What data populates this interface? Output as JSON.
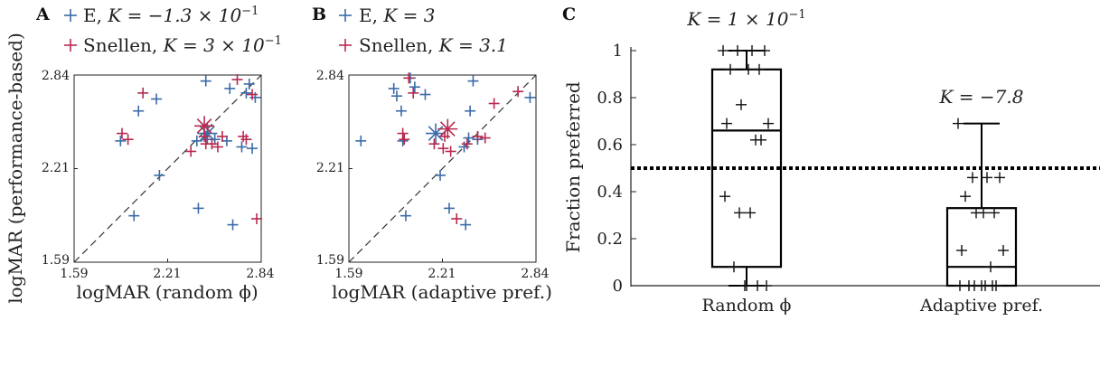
{
  "chart_data": [
    {
      "panel": "A",
      "type": "scatter",
      "xlabel": "logMAR (random ϕ)",
      "ylabel": "logMAR (performance-based)",
      "xlim": [
        1.59,
        2.84
      ],
      "ylim": [
        1.59,
        2.84
      ],
      "xticks": [
        "1.59",
        "2.21",
        "2.84"
      ],
      "yticks": [
        "1.59",
        "2.21",
        "2.84"
      ],
      "diagonal": true,
      "legend_position": "top-left",
      "series": [
        {
          "name_prefix": "E, ",
          "name_math": "K = −1.3 × 10",
          "name_sup": "−1",
          "color": "#3a6aa8",
          "points": [
            [
              1.9,
              2.4
            ],
            [
              1.99,
              1.9
            ],
            [
              2.02,
              2.6
            ],
            [
              2.14,
              2.68
            ],
            [
              2.16,
              2.17
            ],
            [
              2.41,
              2.4
            ],
            [
              2.42,
              1.95
            ],
            [
              2.47,
              2.8
            ],
            [
              2.47,
              2.41
            ],
            [
              2.53,
              2.41
            ],
            [
              2.61,
              2.4
            ],
            [
              2.63,
              2.75
            ],
            [
              2.65,
              1.84
            ],
            [
              2.71,
              2.36
            ],
            [
              2.74,
              2.72
            ],
            [
              2.76,
              2.78
            ],
            [
              2.78,
              2.35
            ],
            [
              2.8,
              2.69
            ]
          ],
          "mean": [
            2.48,
            2.45
          ]
        },
        {
          "name_prefix": "Snellen, ",
          "name_math": "K = 3 × 10",
          "name_sup": "−1",
          "color": "#b8294f",
          "points": [
            [
              1.91,
              2.45
            ],
            [
              1.95,
              2.41
            ],
            [
              2.05,
              2.72
            ],
            [
              2.37,
              2.33
            ],
            [
              2.46,
              2.43
            ],
            [
              2.47,
              2.38
            ],
            [
              2.51,
              2.38
            ],
            [
              2.55,
              2.36
            ],
            [
              2.58,
              2.43
            ],
            [
              2.68,
              2.81
            ],
            [
              2.72,
              2.43
            ],
            [
              2.74,
              2.41
            ],
            [
              2.78,
              2.71
            ],
            [
              2.81,
              1.88
            ]
          ],
          "mean": [
            2.46,
            2.5
          ]
        }
      ]
    },
    {
      "panel": "B",
      "type": "scatter",
      "xlabel": "logMAR (adaptive pref.)",
      "xlim": [
        1.59,
        2.84
      ],
      "ylim": [
        1.59,
        2.84
      ],
      "xticks": [
        "1.59",
        "2.21",
        "2.84"
      ],
      "yticks": [
        "1.59",
        "2.21",
        "2.84"
      ],
      "diagonal": true,
      "legend_position": "top-left",
      "series": [
        {
          "name_prefix": "E, ",
          "name_math": "K = 3",
          "name_sup": "",
          "color": "#3a6aa8",
          "points": [
            [
              1.67,
              2.4
            ],
            [
              1.89,
              2.75
            ],
            [
              1.91,
              2.7
            ],
            [
              1.94,
              2.6
            ],
            [
              1.95,
              2.4
            ],
            [
              1.97,
              1.9
            ],
            [
              2.0,
              2.82
            ],
            [
              2.03,
              2.76
            ],
            [
              2.1,
              2.71
            ],
            [
              2.2,
              2.17
            ],
            [
              2.26,
              1.95
            ],
            [
              2.36,
              2.36
            ],
            [
              2.37,
              1.84
            ],
            [
              2.39,
              2.42
            ],
            [
              2.4,
              2.6
            ],
            [
              2.42,
              2.8
            ],
            [
              2.45,
              2.41
            ],
            [
              2.8,
              2.69
            ]
          ],
          "mean": [
            2.17,
            2.45
          ]
        },
        {
          "name_prefix": "Snellen, ",
          "name_math": "K = 3.1",
          "name_sup": "",
          "color": "#b8294f",
          "points": [
            [
              1.95,
              2.45
            ],
            [
              1.96,
              2.41
            ],
            [
              1.99,
              2.82
            ],
            [
              2.02,
              2.72
            ],
            [
              2.16,
              2.38
            ],
            [
              2.23,
              2.43
            ],
            [
              2.27,
              2.33
            ],
            [
              2.31,
              1.88
            ],
            [
              2.38,
              2.38
            ],
            [
              2.45,
              2.43
            ],
            [
              2.5,
              2.42
            ],
            [
              2.56,
              2.65
            ],
            [
              2.72,
              2.73
            ],
            [
              2.22,
              2.35
            ]
          ],
          "mean": [
            2.25,
            2.48
          ]
        }
      ]
    },
    {
      "panel": "C",
      "type": "box",
      "ylabel": "Fraction preferred",
      "ylim": [
        0,
        1
      ],
      "yticks": [
        "0",
        "0.2",
        "0.4",
        "0.6",
        "0.8",
        "1"
      ],
      "categories": [
        "Random ϕ",
        "Adaptive pref."
      ],
      "reference_line": 0.5,
      "boxes": [
        {
          "label_math": "K = 1 × 10",
          "label_sup": "−1",
          "whisker_low": 0,
          "q1": 0.08,
          "median": 0.66,
          "q3": 0.92,
          "whisker_high": 1.0,
          "points": [
            1.0,
            1.0,
            1.0,
            1.0,
            0.92,
            0.92,
            0.92,
            0.77,
            0.69,
            0.69,
            0.62,
            0.62,
            0.38,
            0.31,
            0.31,
            0.08,
            0.0,
            0.0,
            0.0,
            0.0
          ]
        },
        {
          "label_math": "K = −7.8",
          "label_sup": "",
          "whisker_low": 0,
          "q1": 0,
          "median": 0.08,
          "q3": 0.33,
          "whisker_high": 0.69,
          "points": [
            0.69,
            0.46,
            0.46,
            0.46,
            0.38,
            0.31,
            0.31,
            0.31,
            0.15,
            0.15,
            0.08,
            0.0,
            0.0,
            0.0,
            0.0,
            0.0,
            0.0,
            0.0
          ]
        }
      ]
    }
  ]
}
